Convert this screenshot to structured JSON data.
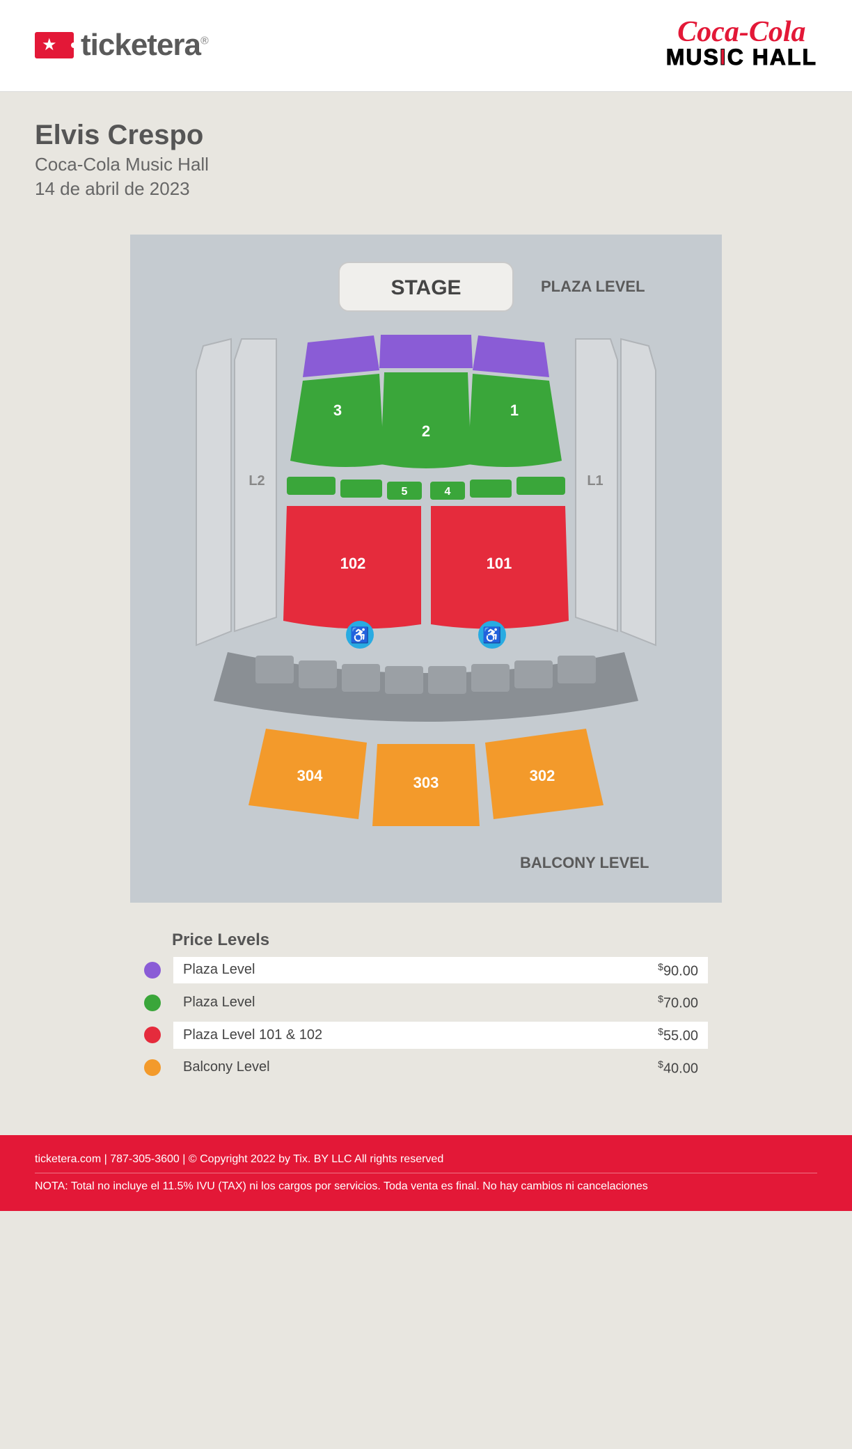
{
  "header": {
    "brand": "ticketera",
    "venue_line1": "Coca-Cola",
    "venue_line2_a": "MUS",
    "venue_line2_b": "I",
    "venue_line2_c": "C HALL"
  },
  "event": {
    "title": "Elvis Crespo",
    "venue": "Coca-Cola Music Hall",
    "date": "14 de abril de 2023"
  },
  "chart": {
    "background": "#c5cbd0",
    "stage": {
      "label": "STAGE",
      "fill": "#f0efec",
      "stroke": "#c9c9c9"
    },
    "plaza_label": "PLAZA LEVEL",
    "balcony_label": "BALCONY LEVEL",
    "side_labels": {
      "left": "L2",
      "right": "L1"
    },
    "colors": {
      "purple": "#8a5cd6",
      "green": "#3aa63a",
      "red": "#e52b3c",
      "orange": "#f39a2b",
      "grey_section": "#d6d9dc",
      "grey_border": "#b0b4b8",
      "dark_grey": "#8a8f94",
      "wheelchair": "#29abe2"
    },
    "sections": {
      "front_center": "2",
      "front_left": "3",
      "front_right": "1",
      "mid_left_small": "5",
      "mid_right_small": "4",
      "sec_101": "101",
      "sec_102": "102",
      "balc_302": "302",
      "balc_303": "303",
      "balc_304": "304"
    }
  },
  "prices": {
    "title": "Price Levels",
    "rows": [
      {
        "color": "#8a5cd6",
        "label": "Plaza Level",
        "price": "90.00",
        "alt": false
      },
      {
        "color": "#3aa63a",
        "label": "Plaza Level",
        "price": "70.00",
        "alt": true
      },
      {
        "color": "#e52b3c",
        "label": "Plaza Level 101 & 102",
        "price": "55.00",
        "alt": false
      },
      {
        "color": "#f39a2b",
        "label": "Balcony Level",
        "price": "40.00",
        "alt": true
      }
    ]
  },
  "footer": {
    "line1": "ticketera.com | 787-305-3600 | © Copyright 2022 by Tix. BY LLC All rights reserved",
    "line2": "NOTA: Total no incluye el 11.5% IVU (TAX) ni los cargos por servicios. Toda venta es final. No hay cambios ni cancelaciones"
  }
}
